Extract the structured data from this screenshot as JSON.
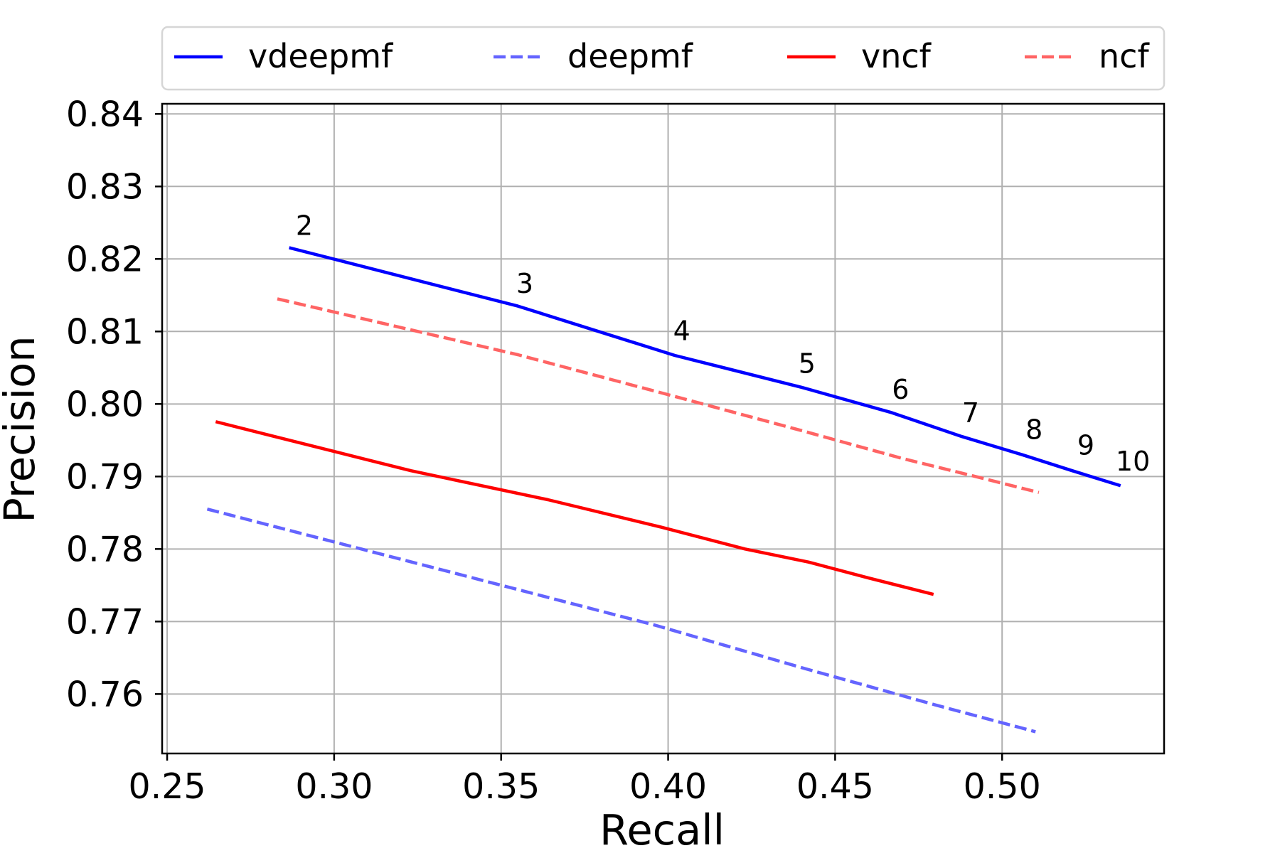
{
  "chart_data": {
    "type": "line",
    "title": "",
    "xlabel": "Recall",
    "ylabel": "Precision",
    "xlim": [
      0.2485,
      0.5485
    ],
    "ylim": [
      0.7518,
      0.8414
    ],
    "xticks": [
      0.25,
      0.3,
      0.35,
      0.4,
      0.45,
      0.5
    ],
    "xtick_labels": [
      "0.25",
      "0.30",
      "0.35",
      "0.40",
      "0.45",
      "0.50"
    ],
    "yticks": [
      0.76,
      0.77,
      0.78,
      0.79,
      0.8,
      0.81,
      0.82,
      0.83,
      0.84
    ],
    "ytick_labels": [
      "0.76",
      "0.77",
      "0.78",
      "0.79",
      "0.80",
      "0.81",
      "0.82",
      "0.83",
      "0.84"
    ],
    "grid": true,
    "legend_position": "top-outside",
    "series": [
      {
        "name": "vdeepmf",
        "color": "#0000ff",
        "linestyle": "solid",
        "x": [
          0.287,
          0.355,
          0.402,
          0.44,
          0.467,
          0.488,
          0.506,
          0.521,
          0.535
        ],
        "y": [
          0.8215,
          0.8135,
          0.8067,
          0.8023,
          0.7988,
          0.7955,
          0.793,
          0.7908,
          0.7888
        ]
      },
      {
        "name": "deepmf",
        "color": "#6464ff",
        "linestyle": "dashed",
        "x": [
          0.262,
          0.34,
          0.396,
          0.441,
          0.48,
          0.51
        ],
        "y": [
          0.7855,
          0.7762,
          0.7695,
          0.7635,
          0.7585,
          0.7548
        ]
      },
      {
        "name": "vncf",
        "color": "#ff0000",
        "linestyle": "solid",
        "x": [
          0.265,
          0.323,
          0.364,
          0.398,
          0.423,
          0.442,
          0.46,
          0.479
        ],
        "y": [
          0.7975,
          0.7908,
          0.7868,
          0.783,
          0.78,
          0.7782,
          0.776,
          0.7738
        ]
      },
      {
        "name": "ncf",
        "color": "#ff6464",
        "linestyle": "dashed",
        "x": [
          0.283,
          0.355,
          0.404,
          0.441,
          0.47,
          0.492,
          0.511
        ],
        "y": [
          0.8145,
          0.8068,
          0.8008,
          0.7962,
          0.7925,
          0.79,
          0.7878
        ]
      }
    ],
    "annotations": [
      {
        "text": "2",
        "x": 0.2885,
        "y": 0.8233
      },
      {
        "text": "3",
        "x": 0.3545,
        "y": 0.8153
      },
      {
        "text": "4",
        "x": 0.4015,
        "y": 0.8088
      },
      {
        "text": "5",
        "x": 0.439,
        "y": 0.8043
      },
      {
        "text": "6",
        "x": 0.467,
        "y": 0.8007
      },
      {
        "text": "7",
        "x": 0.488,
        "y": 0.7975
      },
      {
        "text": "8",
        "x": 0.507,
        "y": 0.7952
      },
      {
        "text": "9",
        "x": 0.5225,
        "y": 0.793
      },
      {
        "text": "10",
        "x": 0.534,
        "y": 0.7908
      }
    ]
  }
}
